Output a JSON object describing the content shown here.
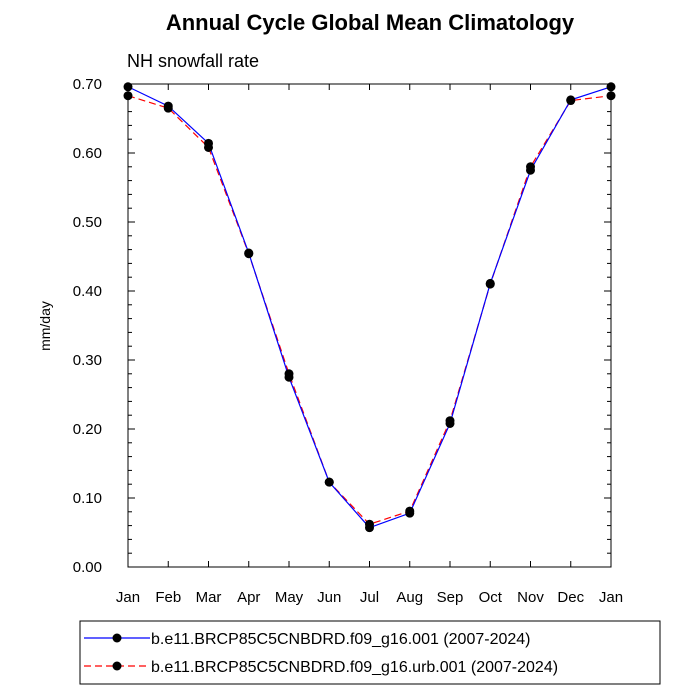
{
  "chart_data": {
    "type": "line",
    "title": "Annual Cycle Global Mean Climatology",
    "subtitle": "NH snowfall rate",
    "xlabel": "",
    "ylabel": "mm/day",
    "categories": [
      "Jan",
      "Feb",
      "Mar",
      "Apr",
      "May",
      "Jun",
      "Jul",
      "Aug",
      "Sep",
      "Oct",
      "Nov",
      "Dec",
      "Jan"
    ],
    "ylim": [
      0.0,
      0.7
    ],
    "yticks": [
      "0.00",
      "0.10",
      "0.20",
      "0.30",
      "0.40",
      "0.50",
      "0.60",
      "0.70"
    ],
    "legend_position": "bottom",
    "series": [
      {
        "name": "b.e11.BRCP85C5CNBDRD.f09_g16.001 (2007-2024)",
        "color": "#0000ff",
        "dash": "solid",
        "values": [
          0.696,
          0.668,
          0.614,
          0.455,
          0.275,
          0.123,
          0.057,
          0.078,
          0.208,
          0.411,
          0.575,
          0.677,
          0.696
        ]
      },
      {
        "name": "b.e11.BRCP85C5CNBDRD.f09_g16.urb.001 (2007-2024)",
        "color": "#ff0000",
        "dash": "dashed",
        "values": [
          0.683,
          0.665,
          0.608,
          0.454,
          0.28,
          0.123,
          0.062,
          0.081,
          0.212,
          0.41,
          0.58,
          0.676,
          0.683
        ]
      }
    ]
  }
}
